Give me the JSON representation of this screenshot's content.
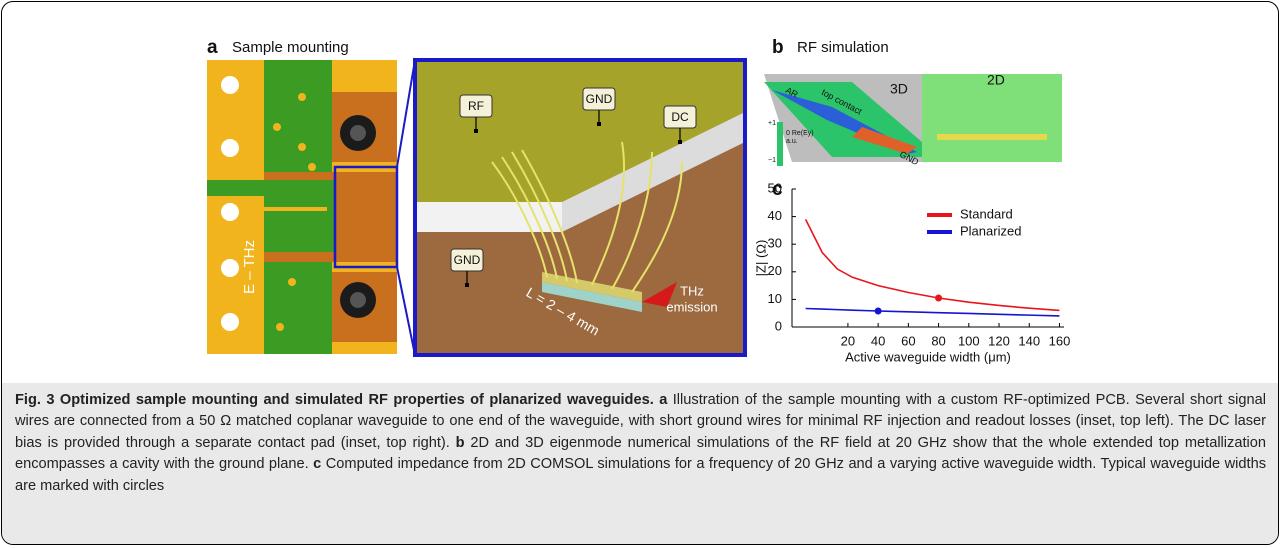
{
  "figure": {
    "panel_a": {
      "label": "a",
      "title": "Sample mounting",
      "pcb_label": "E – THz",
      "inset_labels": [
        "RF",
        "GND",
        "DC",
        "GND"
      ],
      "length": "L = 2 – 4 mm",
      "emission": [
        "THz",
        "emission"
      ]
    },
    "panel_b": {
      "label": "b",
      "title": "RF simulation",
      "view_3d": "3D",
      "view_2d": "2D",
      "contact": "top contact",
      "ar": "AR",
      "gnd": "GND",
      "colorbar": [
        "+1",
        "0  Re(Ey)",
        "a.u.",
        "−1"
      ]
    },
    "panel_c": {
      "label": "c"
    }
  },
  "chart_data": {
    "type": "line",
    "xlabel": "Active waveguide width (μm)",
    "ylabel": "|Z| (Ω)",
    "x": [
      -8,
      3,
      13,
      23,
      40,
      60,
      80,
      100,
      120,
      140,
      160
    ],
    "series": [
      {
        "name": "Standard",
        "color": "#e8161b",
        "values": [
          39,
          27,
          21,
          18,
          15,
          12.5,
          10.5,
          9,
          7.8,
          6.8,
          6
        ]
      },
      {
        "name": "Planarized",
        "color": "#1414d2",
        "values": [
          6.7,
          6.5,
          6.3,
          6.1,
          5.8,
          5.5,
          5.2,
          4.9,
          4.6,
          4.3,
          4.0
        ]
      }
    ],
    "marked_points": [
      {
        "x": 80,
        "y": 10.5,
        "color": "#e8161b"
      },
      {
        "x": 40,
        "y": 5.8,
        "color": "#1414d2"
      }
    ],
    "xlim": [
      -17,
      163
    ],
    "ylim": [
      0,
      50
    ],
    "xticks": [
      20,
      40,
      60,
      80,
      100,
      120,
      140,
      160
    ],
    "yticks": [
      0,
      10,
      20,
      30,
      40,
      50
    ]
  },
  "caption": {
    "title": "Fig. 3 Optimized sample mounting and simulated RF properties of planarized waveguides.",
    "parts": [
      {
        "label": "a",
        "text": "Illustration of the sample mounting with a custom RF-optimized PCB. Several short signal wires are connected from a 50 Ω matched coplanar waveguide to one end of the waveguide, with short ground wires for minimal RF injection and readout losses (inset, top left). The DC laser bias is provided through a separate contact pad (inset, top right)."
      },
      {
        "label": "b",
        "text": "2D and 3D eigenmode numerical simulations of the RF field at 20 GHz show that the whole extended top metallization encompasses a cavity with the ground plane."
      },
      {
        "label": "c",
        "text": "Computed impedance from 2D COMSOL simulations for a frequency of 20 GHz and a varying active waveguide width. Typical waveguide widths are marked with circles"
      }
    ]
  }
}
